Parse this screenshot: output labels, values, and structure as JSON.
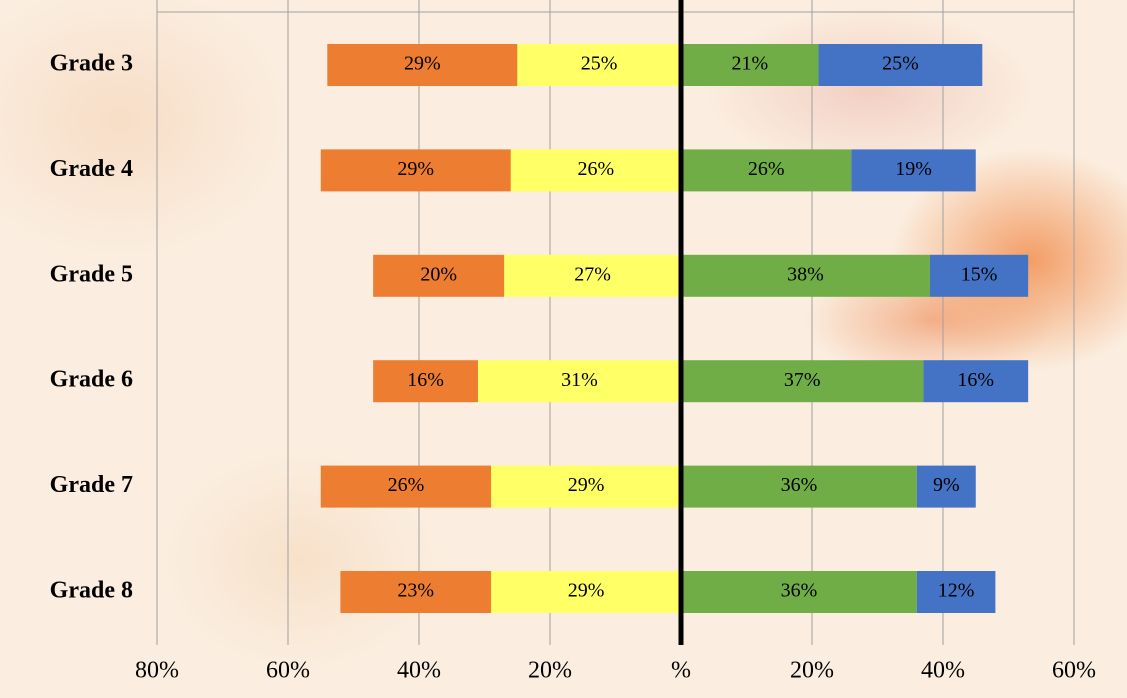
{
  "chart_data": {
    "type": "diverging_bar",
    "categories": [
      "Grade 3",
      "Grade 4",
      "Grade 5",
      "Grade 6",
      "Grade 7",
      "Grade 8"
    ],
    "series": [
      {
        "color": "#ed7d31",
        "direction": "left",
        "values": [
          29,
          29,
          20,
          16,
          26,
          23
        ],
        "value_labels": [
          "29%",
          "29%",
          "20%",
          "16%",
          "26%",
          "23%"
        ]
      },
      {
        "color": "#ffff66",
        "direction": "left",
        "values": [
          25,
          26,
          27,
          31,
          29,
          29
        ],
        "value_labels": [
          "25%",
          "26%",
          "27%",
          "31%",
          "29%",
          "29%"
        ]
      },
      {
        "color": "#70ad47",
        "direction": "right",
        "values": [
          21,
          26,
          38,
          37,
          36,
          36
        ],
        "value_labels": [
          "21%",
          "26%",
          "38%",
          "37%",
          "36%",
          "36%"
        ]
      },
      {
        "color": "#4472c4",
        "direction": "right",
        "values": [
          25,
          19,
          15,
          16,
          9,
          12
        ],
        "value_labels": [
          "25%",
          "19%",
          "15%",
          "16%",
          "9%",
          "12%"
        ]
      }
    ],
    "xlim": [
      -80,
      60
    ],
    "xticks": [
      {
        "value": -80,
        "label": "80%"
      },
      {
        "value": -60,
        "label": "60%"
      },
      {
        "value": -40,
        "label": "40%"
      },
      {
        "value": -20,
        "label": "20%"
      },
      {
        "value": 0,
        "label": "%"
      },
      {
        "value": 20,
        "label": "20%"
      },
      {
        "value": 40,
        "label": "40%"
      },
      {
        "value": 60,
        "label": "60%"
      }
    ],
    "grid": true
  }
}
